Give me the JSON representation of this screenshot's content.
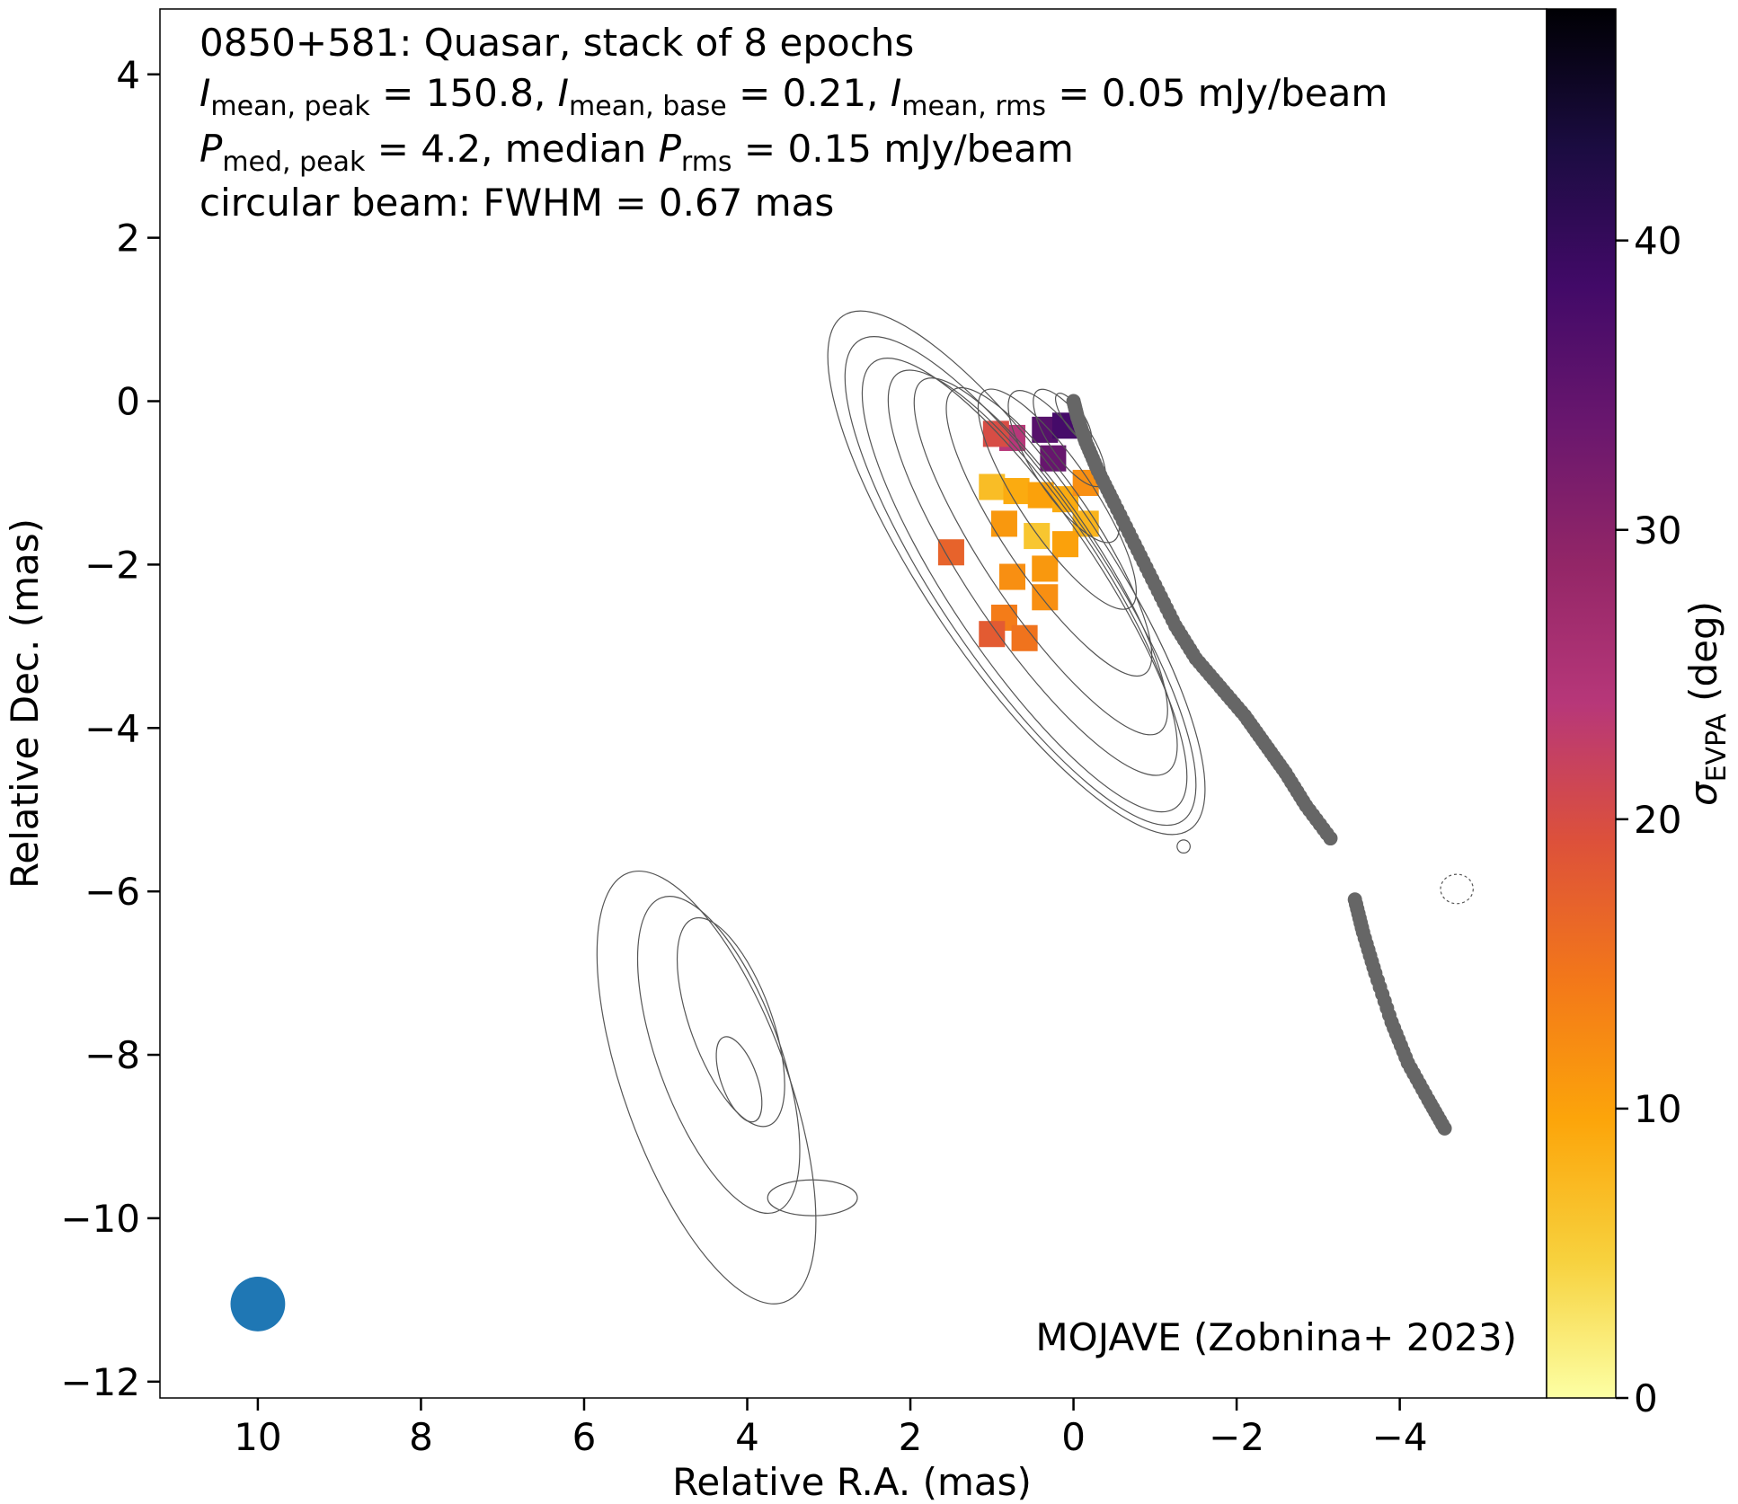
{
  "chart_data": {
    "type": "scatter",
    "annotations": {
      "line1": "0850+581: Quasar, stack of 8 epochs",
      "line2": {
        "s1": "I",
        "s1_sub": "mean, peak",
        "s1_val": " = 150.8, ",
        "s2": "I",
        "s2_sub": "mean, base",
        "s2_val": " = 0.21, ",
        "s3": "I",
        "s3_sub": "mean, rms",
        "s3_val": " = 0.05 mJy/beam"
      },
      "line3": {
        "s1": "P",
        "s1_sub": "med, peak",
        "s1_val": " = 4.2, median ",
        "s2": "P",
        "s2_sub": "rms",
        "s2_val": " = 0.15 mJy/beam"
      },
      "line4": "circular beam: FWHM = 0.67 mas",
      "credit": "MOJAVE (Zobnina+ 2023)"
    },
    "xlabel": "Relative R.A. (mas)",
    "ylabel": "Relative Dec. (mas)",
    "xlim": [
      11.2,
      -5.8
    ],
    "ylim": [
      -12.2,
      4.8
    ],
    "x_ticks": [
      10,
      8,
      6,
      4,
      2,
      0,
      -2,
      -4
    ],
    "x_tick_labels": [
      "10",
      "8",
      "6",
      "4",
      "2",
      "0",
      "−2",
      "−4"
    ],
    "y_ticks": [
      4,
      2,
      0,
      -2,
      -4,
      -6,
      -8,
      -10,
      -12
    ],
    "y_tick_labels": [
      "4",
      "2",
      "0",
      "−2",
      "−4",
      "−6",
      "−8",
      "−10",
      "−12"
    ],
    "colorbar": {
      "label_sym": "σ",
      "label_sub": "EVPA",
      "label_unit": " (deg)",
      "range": [
        0,
        48
      ],
      "ticks": [
        0,
        10,
        20,
        30,
        40
      ],
      "tick_labels": [
        "0",
        "10",
        "20",
        "30",
        "40"
      ],
      "colormap": "inferno_r",
      "colors": [
        "#fcffa4",
        "#f7d13d",
        "#fca50a",
        "#f37819",
        "#dd513a",
        "#b73779",
        "#932667",
        "#6a176e",
        "#420a68",
        "#1b0c41",
        "#000004"
      ]
    },
    "ridge_line_color": "#666666",
    "beam": {
      "x": 10.0,
      "y": -11.05,
      "fwhm_mas": 0.67,
      "color": "#1f77b4"
    },
    "ridge_segments": [
      {
        "name": "inner ridge line",
        "points": [
          [
            0.0,
            0.0
          ],
          [
            -0.05,
            -0.2
          ],
          [
            -0.15,
            -0.5
          ],
          [
            -0.3,
            -0.85
          ],
          [
            -0.5,
            -1.25
          ],
          [
            -0.75,
            -1.75
          ],
          [
            -1.0,
            -2.25
          ],
          [
            -1.25,
            -2.75
          ],
          [
            -1.5,
            -3.15
          ],
          [
            -1.8,
            -3.5
          ],
          [
            -2.1,
            -3.85
          ],
          [
            -2.35,
            -4.2
          ],
          [
            -2.6,
            -4.55
          ],
          [
            -2.85,
            -4.95
          ],
          [
            -3.15,
            -5.35
          ]
        ]
      },
      {
        "name": "outer ridge line",
        "points": [
          [
            -3.45,
            -6.1
          ],
          [
            -3.55,
            -6.5
          ],
          [
            -3.7,
            -7.0
          ],
          [
            -3.9,
            -7.6
          ],
          [
            -4.1,
            -8.1
          ],
          [
            -4.35,
            -8.55
          ],
          [
            -4.55,
            -8.9
          ]
        ]
      }
    ],
    "evpa_patches": [
      {
        "x": 0.35,
        "y": -0.35,
        "sigma": 36
      },
      {
        "x": 0.1,
        "y": -0.3,
        "sigma": 38
      },
      {
        "x": 0.25,
        "y": -0.7,
        "sigma": 34
      },
      {
        "x": 0.75,
        "y": -0.45,
        "sigma": 24
      },
      {
        "x": 0.95,
        "y": -0.4,
        "sigma": 20
      },
      {
        "x": 1.0,
        "y": -1.05,
        "sigma": 7
      },
      {
        "x": 0.7,
        "y": -1.1,
        "sigma": 9
      },
      {
        "x": 0.4,
        "y": -1.15,
        "sigma": 10
      },
      {
        "x": 0.1,
        "y": -1.2,
        "sigma": 9
      },
      {
        "x": -0.15,
        "y": -1.0,
        "sigma": 12
      },
      {
        "x": -0.15,
        "y": -1.5,
        "sigma": 8
      },
      {
        "x": 0.85,
        "y": -1.5,
        "sigma": 11
      },
      {
        "x": 0.45,
        "y": -1.65,
        "sigma": 6
      },
      {
        "x": 0.1,
        "y": -1.75,
        "sigma": 10
      },
      {
        "x": 0.35,
        "y": -2.05,
        "sigma": 11
      },
      {
        "x": 0.75,
        "y": -2.15,
        "sigma": 12
      },
      {
        "x": 0.35,
        "y": -2.4,
        "sigma": 12
      },
      {
        "x": 0.85,
        "y": -2.65,
        "sigma": 14
      },
      {
        "x": 1.0,
        "y": -2.85,
        "sigma": 18
      },
      {
        "x": 0.6,
        "y": -2.9,
        "sigma": 15
      },
      {
        "x": 1.5,
        "y": -1.85,
        "sigma": 17
      }
    ],
    "grid": false
  }
}
